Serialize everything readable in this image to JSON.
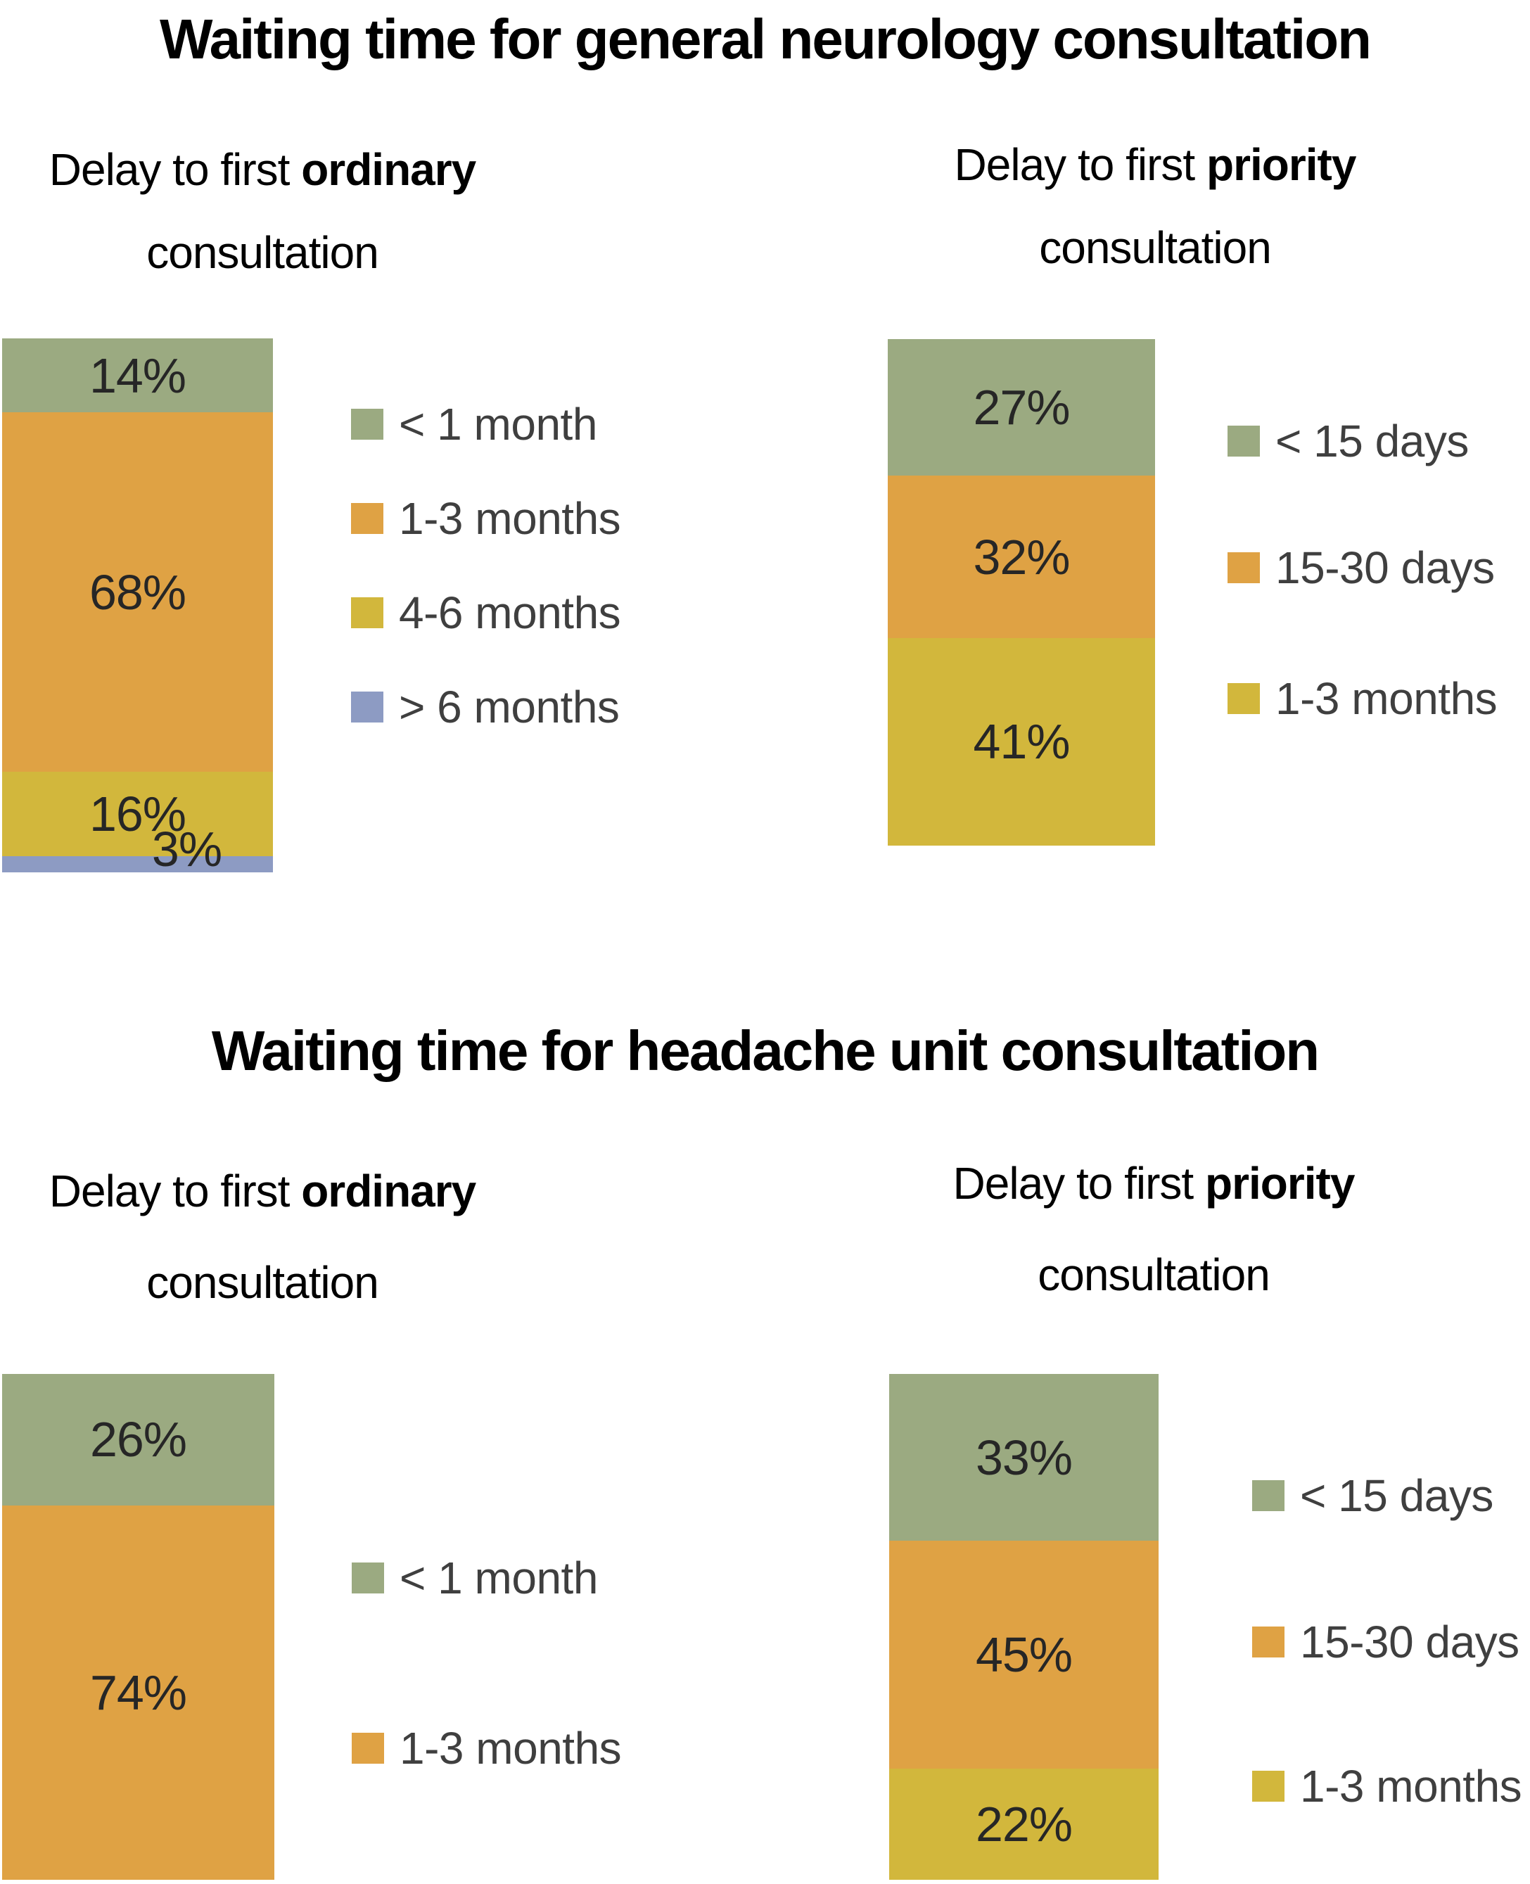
{
  "palette": {
    "green": "#9BAA81",
    "orange": "#DFA244",
    "yellow": "#D2B73C",
    "blue": "#8D9BC3",
    "bar_label_color": "#262626",
    "legend_text_color": "#3F3F3F",
    "title_color": "#000000"
  },
  "sections": [
    {
      "title": "Waiting time for general neurology consultation",
      "subtitles": [
        {
          "prefix": "Delay to first ",
          "emphasis": "ordinary",
          "line2": "consultation"
        },
        {
          "prefix": "Delay to first ",
          "emphasis": "priority",
          "line2": "consultation"
        }
      ]
    },
    {
      "title": "Waiting time for headache unit consultation",
      "subtitles": [
        {
          "prefix": "Delay to first ",
          "emphasis": "ordinary",
          "line2": "consultation"
        },
        {
          "prefix": "Delay to first ",
          "emphasis": "priority",
          "line2": "consultation"
        }
      ]
    }
  ],
  "chart_data": [
    {
      "name": "general-neurology-ordinary",
      "type": "bar",
      "subtype": "stacked-single-column",
      "title": "Delay to first ordinary consultation",
      "categories": [
        "< 1 month",
        "1-3 months",
        "4-6 months",
        "> 6 months"
      ],
      "values": [
        14,
        68,
        16,
        3
      ],
      "value_labels": [
        "14%",
        "68%",
        "16%",
        "3%"
      ],
      "colors": [
        "green",
        "orange",
        "yellow",
        "blue"
      ],
      "legend_position": "right",
      "ylim": [
        0,
        100
      ]
    },
    {
      "name": "general-neurology-priority",
      "type": "bar",
      "subtype": "stacked-single-column",
      "title": "Delay to first priority consultation",
      "categories": [
        "< 15 days",
        "15-30 days",
        "1-3 months"
      ],
      "values": [
        27,
        32,
        41
      ],
      "value_labels": [
        "27%",
        "32%",
        "41%"
      ],
      "colors": [
        "green",
        "orange",
        "yellow"
      ],
      "legend_position": "right",
      "ylim": [
        0,
        100
      ]
    },
    {
      "name": "headache-unit-ordinary",
      "type": "bar",
      "subtype": "stacked-single-column",
      "title": "Delay to first ordinary consultation",
      "categories": [
        "< 1 month",
        "1-3 months"
      ],
      "values": [
        26,
        74
      ],
      "value_labels": [
        "26%",
        "74%"
      ],
      "colors": [
        "green",
        "orange"
      ],
      "legend_position": "right",
      "ylim": [
        0,
        100
      ]
    },
    {
      "name": "headache-unit-priority",
      "type": "bar",
      "subtype": "stacked-single-column",
      "title": "Delay to first priority consultation",
      "categories": [
        "< 15 days",
        "15-30 days",
        "1-3 months"
      ],
      "values": [
        33,
        45,
        22
      ],
      "value_labels": [
        "33%",
        "45%",
        "22%"
      ],
      "colors": [
        "green",
        "orange",
        "yellow"
      ],
      "legend_position": "right",
      "ylim": [
        0,
        100
      ]
    }
  ]
}
